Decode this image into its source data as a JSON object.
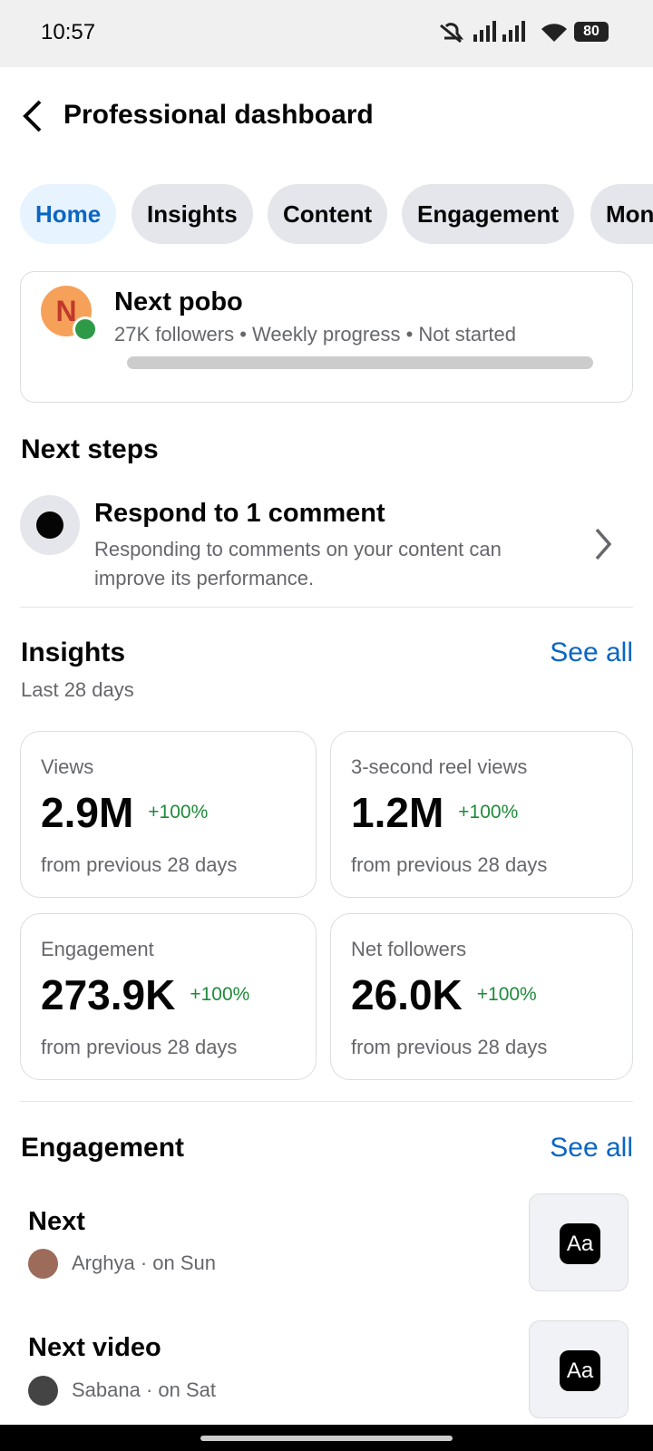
{
  "status_bar": {
    "time": "10:57",
    "battery": "80"
  },
  "header": {
    "title": "Professional dashboard"
  },
  "tabs": [
    "Home",
    "Insights",
    "Content",
    "Engagement",
    "Monetization"
  ],
  "profile": {
    "initial": "N",
    "name": "Next pobo",
    "details": [
      "27K followers",
      "Weekly progress",
      "Not started"
    ]
  },
  "next_steps": {
    "title": "Next steps",
    "items": [
      {
        "title": "Respond to 1 comment",
        "description": "Responding to comments on your content can improve its performance."
      }
    ]
  },
  "insights": {
    "title": "Insights",
    "see_all": "See all",
    "subtitle": "Last 28 days",
    "cards": [
      {
        "label": "Views",
        "value": "2.9M",
        "change": "+100%",
        "footer": "from previous 28 days"
      },
      {
        "label": "3-second reel views",
        "value": "1.2M",
        "change": "+100%",
        "footer": "from previous 28 days"
      },
      {
        "label": "Engagement",
        "value": "273.9K",
        "change": "+100%",
        "footer": "from previous 28 days"
      },
      {
        "label": "Net followers",
        "value": "26.0K",
        "change": "+100%",
        "footer": "from previous 28 days"
      }
    ]
  },
  "engagement": {
    "title": "Engagement",
    "see_all": "See all",
    "items": [
      {
        "title": "Next",
        "meta": "Arghya · on Sun",
        "thumb": "Aa"
      },
      {
        "title": "Next video",
        "meta": "Sabana · on Sat",
        "thumb": "Aa"
      }
    ]
  }
}
